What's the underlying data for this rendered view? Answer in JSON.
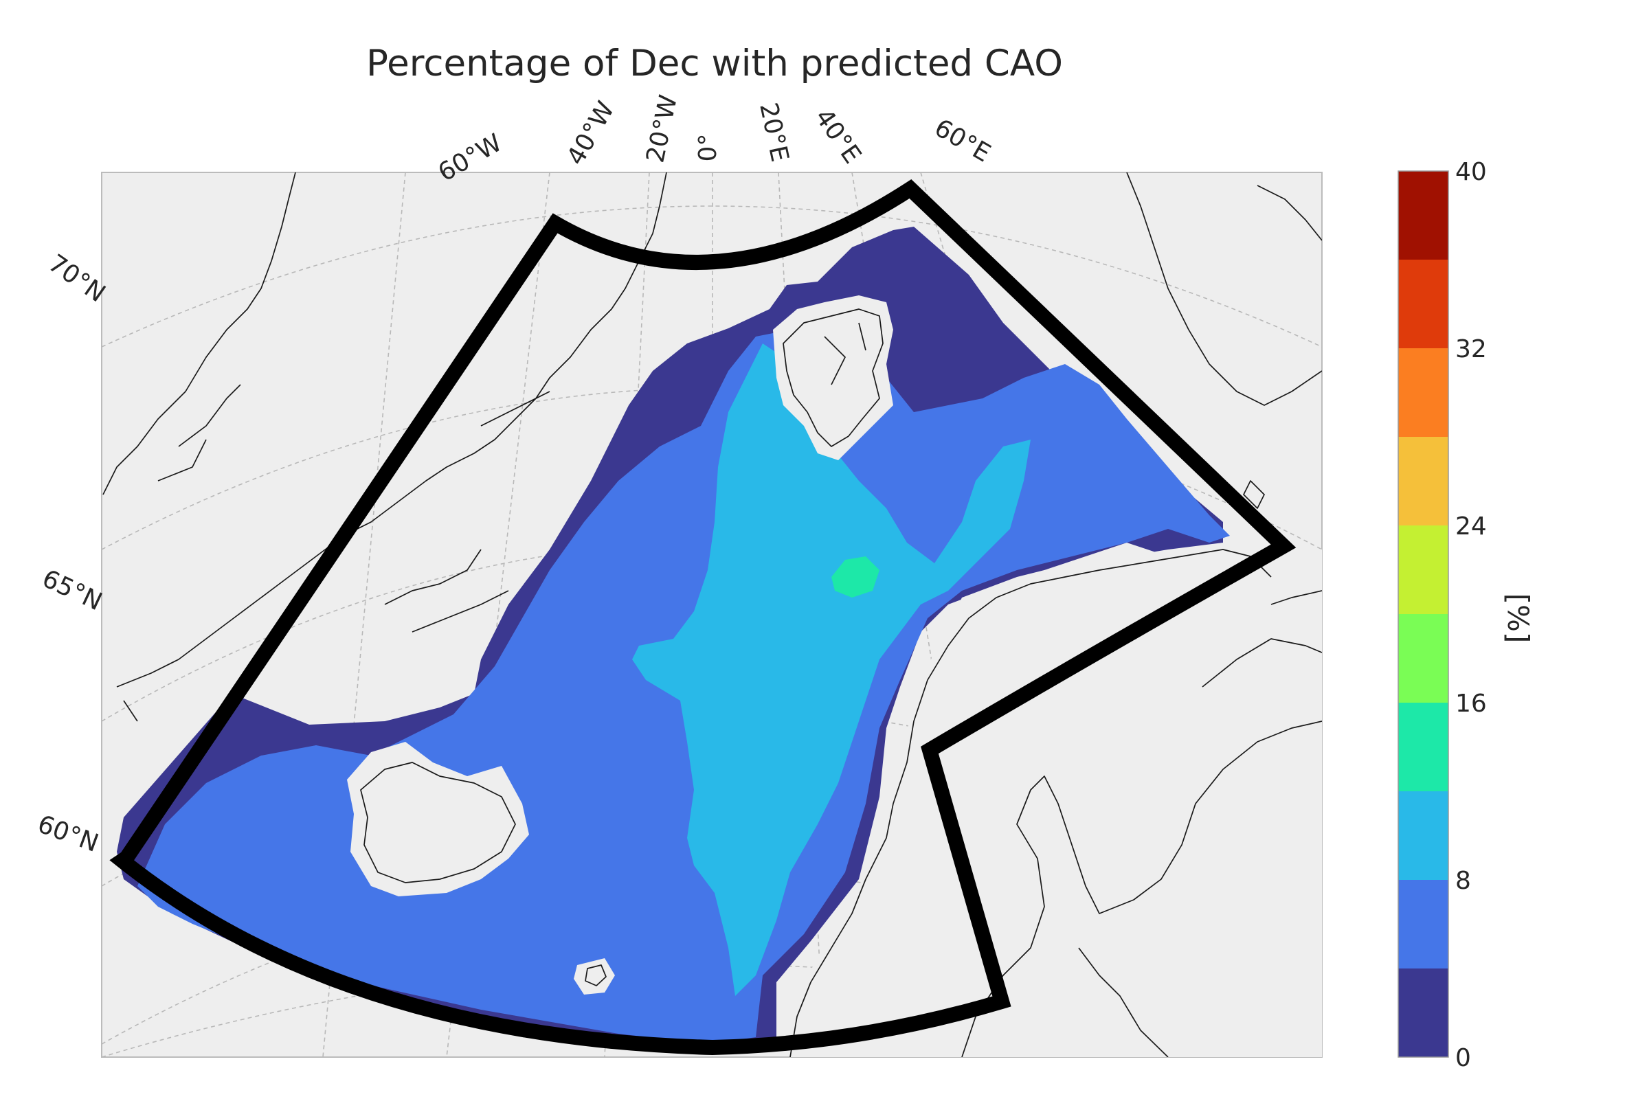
{
  "title": "Percentage of Dec with predicted CAO",
  "colorbar": {
    "label": "[%]",
    "ticks": [
      "0",
      "8",
      "16",
      "24",
      "32",
      "40"
    ],
    "range": [
      0,
      40
    ],
    "bins": [
      {
        "from": 0,
        "to": 4,
        "color": "#3b3890"
      },
      {
        "from": 4,
        "to": 8,
        "color": "#4576e8"
      },
      {
        "from": 8,
        "to": 12,
        "color": "#29b9e8"
      },
      {
        "from": 12,
        "to": 16,
        "color": "#1de8a8"
      },
      {
        "from": 16,
        "to": 20,
        "color": "#7afd55"
      },
      {
        "from": 20,
        "to": 24,
        "color": "#c4f032"
      },
      {
        "from": 24,
        "to": 28,
        "color": "#f5c03a"
      },
      {
        "from": 28,
        "to": 32,
        "color": "#fb7e21"
      },
      {
        "from": 32,
        "to": 36,
        "color": "#df3b0b"
      },
      {
        "from": 36,
        "to": 40,
        "color": "#a01101"
      }
    ]
  },
  "graticule": {
    "longitude_labels": [
      "60°W",
      "40°W",
      "20°W",
      "0°",
      "20°E",
      "40°E",
      "60°E"
    ],
    "latitude_labels": [
      "70°N",
      "65°N",
      "60°N"
    ]
  },
  "colors": {
    "background": "#ffffff",
    "map_land_sea": "#eeeeee",
    "domain_outline": "#000000",
    "coastline": "#1a1a1a",
    "gridline": "#b8b8b8"
  }
}
